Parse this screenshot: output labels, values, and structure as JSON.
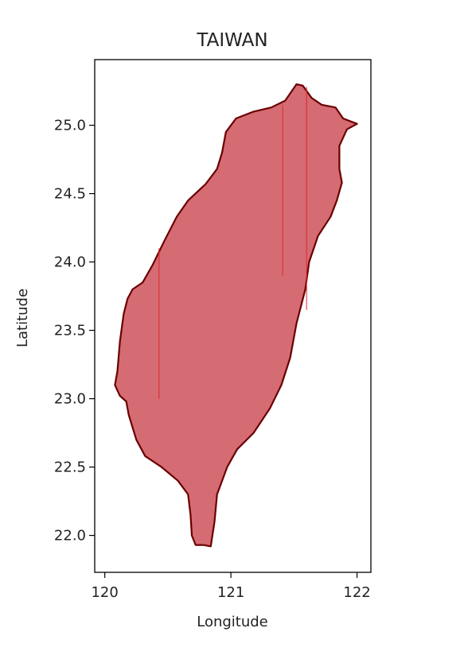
{
  "chart_data": {
    "type": "map",
    "title": "TAIWAN",
    "xlabel": "Longitude",
    "ylabel": "Latitude",
    "xlim": [
      119.92,
      122.11
    ],
    "ylim": [
      21.73,
      25.48
    ],
    "xticks": [
      120,
      121,
      122
    ],
    "xtick_labels": [
      "120",
      "121",
      "122"
    ],
    "yticks": [
      22.0,
      22.5,
      23.0,
      23.5,
      24.0,
      24.5,
      25.0
    ],
    "ytick_labels": [
      "22.0",
      "22.5",
      "23.0",
      "23.5",
      "24.0",
      "24.5",
      "25.0"
    ],
    "grid": false,
    "region": {
      "name": "Taiwan",
      "fill_color": "#d56b73",
      "edge_color": "#6b0000",
      "outline": [
        [
          121.52,
          25.3
        ],
        [
          121.57,
          25.29
        ],
        [
          121.64,
          25.2
        ],
        [
          121.72,
          25.15
        ],
        [
          121.83,
          25.13
        ],
        [
          121.89,
          25.05
        ],
        [
          122.0,
          25.01
        ],
        [
          121.92,
          24.97
        ],
        [
          121.86,
          24.85
        ],
        [
          121.86,
          24.68
        ],
        [
          121.88,
          24.58
        ],
        [
          121.84,
          24.45
        ],
        [
          121.79,
          24.33
        ],
        [
          121.69,
          24.19
        ],
        [
          121.62,
          24.0
        ],
        [
          121.59,
          23.8
        ],
        [
          121.52,
          23.55
        ],
        [
          121.47,
          23.3
        ],
        [
          121.4,
          23.1
        ],
        [
          121.31,
          22.93
        ],
        [
          121.18,
          22.75
        ],
        [
          121.05,
          22.63
        ],
        [
          120.97,
          22.5
        ],
        [
          120.89,
          22.3
        ],
        [
          120.87,
          22.1
        ],
        [
          120.84,
          21.92
        ],
        [
          120.78,
          21.93
        ],
        [
          120.72,
          21.93
        ],
        [
          120.69,
          22.0
        ],
        [
          120.68,
          22.15
        ],
        [
          120.66,
          22.3
        ],
        [
          120.58,
          22.4
        ],
        [
          120.45,
          22.5
        ],
        [
          120.32,
          22.58
        ],
        [
          120.25,
          22.7
        ],
        [
          120.19,
          22.88
        ],
        [
          120.17,
          22.98
        ],
        [
          120.12,
          23.02
        ],
        [
          120.08,
          23.1
        ],
        [
          120.1,
          23.2
        ],
        [
          120.12,
          23.42
        ],
        [
          120.15,
          23.62
        ],
        [
          120.18,
          23.73
        ],
        [
          120.22,
          23.8
        ],
        [
          120.3,
          23.85
        ],
        [
          120.38,
          23.98
        ],
        [
          120.47,
          24.15
        ],
        [
          120.57,
          24.33
        ],
        [
          120.66,
          24.45
        ],
        [
          120.8,
          24.57
        ],
        [
          120.89,
          24.68
        ],
        [
          120.93,
          24.8
        ],
        [
          120.96,
          24.95
        ],
        [
          121.04,
          25.05
        ],
        [
          121.18,
          25.1
        ],
        [
          121.32,
          25.13
        ],
        [
          121.43,
          25.18
        ],
        [
          121.52,
          25.3
        ]
      ],
      "artifact_lines": [
        {
          "x": 120.43,
          "y": [
            23.0,
            24.1
          ]
        },
        {
          "x": 121.41,
          "y": [
            23.9,
            25.15
          ]
        },
        {
          "x": 121.6,
          "y": [
            23.65,
            25.28
          ]
        }
      ],
      "artifact_color": "#e0282f"
    }
  }
}
